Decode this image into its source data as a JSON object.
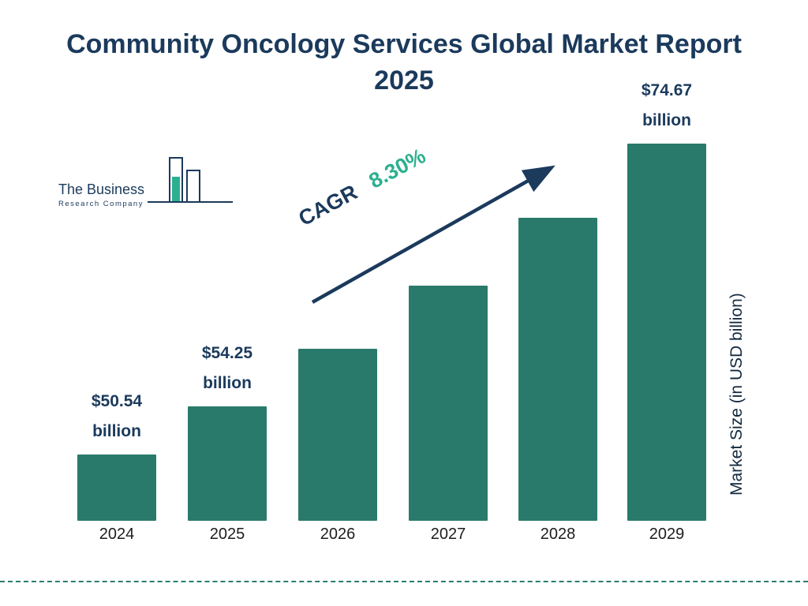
{
  "title": "Community Oncology Services Global Market Report 2025",
  "logo": {
    "line1": "The Business",
    "line2": "Research Company"
  },
  "chart_data": {
    "type": "bar",
    "title": "Community Oncology Services Global Market Report 2025",
    "categories": [
      "2024",
      "2025",
      "2026",
      "2027",
      "2028",
      "2029"
    ],
    "values": [
      50.54,
      54.25,
      58.75,
      63.62,
      68.91,
      74.67
    ],
    "value_labels": [
      "$50.54\nbillion",
      "$54.25\nbillion",
      "",
      "",
      "",
      "$74.67\nbillion"
    ],
    "xlabel": "",
    "ylabel": "Market Size (in USD billion)",
    "ylim": [
      45,
      78
    ],
    "grid": false,
    "legend": "none",
    "bar_color": "#2a7a6b",
    "annotation": {
      "cagr_label": "CAGR",
      "cagr_value": "8.30%",
      "arrow_color": "#1b3a5c"
    }
  },
  "colors": {
    "title": "#1b3a5c",
    "bar": "#2a7a6b",
    "accent_green": "#2bb08f",
    "navy": "#1b3a5c",
    "dashed_line": "#2a7d6f"
  }
}
